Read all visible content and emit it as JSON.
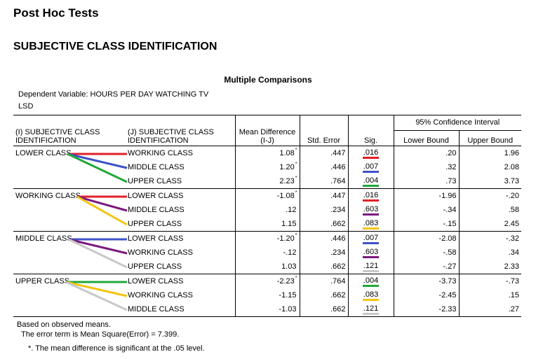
{
  "header": {
    "title": "Post Hoc Tests",
    "subtitle": "SUBJECTIVE CLASS IDENTIFICATION"
  },
  "table": {
    "caption": "Multiple Comparisons",
    "dependent_variable": "Dependent Variable: HOURS PER DAY WATCHING TV",
    "method": "LSD",
    "columns": {
      "i": "(I) SUBJECTIVE CLASS IDENTIFICATION",
      "j": "(J) SUBJECTIVE CLASS IDENTIFICATION",
      "mean_diff": "Mean Difference (I-J)",
      "std_error": "Std. Error",
      "sig": "Sig.",
      "ci": "95% Confidence Interval",
      "lower": "Lower Bound",
      "upper": "Upper Bound"
    },
    "significance_marker": "*",
    "groups": [
      {
        "i": "LOWER CLASS",
        "rows": [
          {
            "j": "WORKING CLASS",
            "mean_diff": "1.08",
            "star": "*",
            "se": ".447",
            "sig": ".016",
            "sig_color": "#e0202a",
            "lower": ".20",
            "upper": "1.96"
          },
          {
            "j": "MIDDLE CLASS",
            "mean_diff": "1.20",
            "star": "*",
            "se": ".446",
            "sig": ".007",
            "sig_color": "#3d52c9",
            "lower": ".32",
            "upper": "2.08"
          },
          {
            "j": "UPPER CLASS",
            "mean_diff": "2.23",
            "star": "*",
            "se": ".764",
            "sig": ".004",
            "sig_color": "#22a83a",
            "lower": ".73",
            "upper": "3.73"
          }
        ]
      },
      {
        "i": "WORKING CLASS",
        "rows": [
          {
            "j": "LOWER CLASS",
            "mean_diff": "-1.08",
            "star": "*",
            "se": ".447",
            "sig": ".016",
            "sig_color": "#e0202a",
            "lower": "-1.96",
            "upper": "-.20"
          },
          {
            "j": "MIDDLE CLASS",
            "mean_diff": ".12",
            "star": "",
            "se": ".234",
            "sig": ".603",
            "sig_color": "#7b1a7e",
            "lower": "-.34",
            "upper": ".58"
          },
          {
            "j": "UPPER CLASS",
            "mean_diff": "1.15",
            "star": "",
            "se": ".662",
            "sig": ".083",
            "sig_color": "#f4c413",
            "lower": "-.15",
            "upper": "2.45"
          }
        ]
      },
      {
        "i": "MIDDLE CLASS",
        "rows": [
          {
            "j": "LOWER CLASS",
            "mean_diff": "-1.20",
            "star": "*",
            "se": ".446",
            "sig": ".007",
            "sig_color": "#3d52c9",
            "lower": "-2.08",
            "upper": "-.32"
          },
          {
            "j": "WORKING CLASS",
            "mean_diff": "-.12",
            "star": "",
            "se": ".234",
            "sig": ".603",
            "sig_color": "#7b1a7e",
            "lower": "-.58",
            "upper": ".34"
          },
          {
            "j": "UPPER CLASS",
            "mean_diff": "1.03",
            "star": "",
            "se": ".662",
            "sig": ".121",
            "sig_color": "#c8c8c8",
            "lower": "-.27",
            "upper": "2.33"
          }
        ]
      },
      {
        "i": "UPPER CLASS",
        "rows": [
          {
            "j": "LOWER CLASS",
            "mean_diff": "-2.23",
            "star": "*",
            "se": ".764",
            "sig": ".004",
            "sig_color": "#22a83a",
            "lower": "-3.73",
            "upper": "-.73"
          },
          {
            "j": "WORKING CLASS",
            "mean_diff": "-1.15",
            "star": "",
            "se": ".662",
            "sig": ".083",
            "sig_color": "#f4c413",
            "lower": "-2.45",
            "upper": ".15"
          },
          {
            "j": "MIDDLE CLASS",
            "mean_diff": "-1.03",
            "star": "",
            "se": ".662",
            "sig": ".121",
            "sig_color": "#c8c8c8",
            "lower": "-2.33",
            "upper": ".27"
          }
        ]
      }
    ]
  },
  "footnotes": {
    "based_on": "Based on observed means.",
    "error_term": "The error term is Mean Square(Error) = 7.399.",
    "significance": "*. The mean difference is significant at the .05 level."
  }
}
